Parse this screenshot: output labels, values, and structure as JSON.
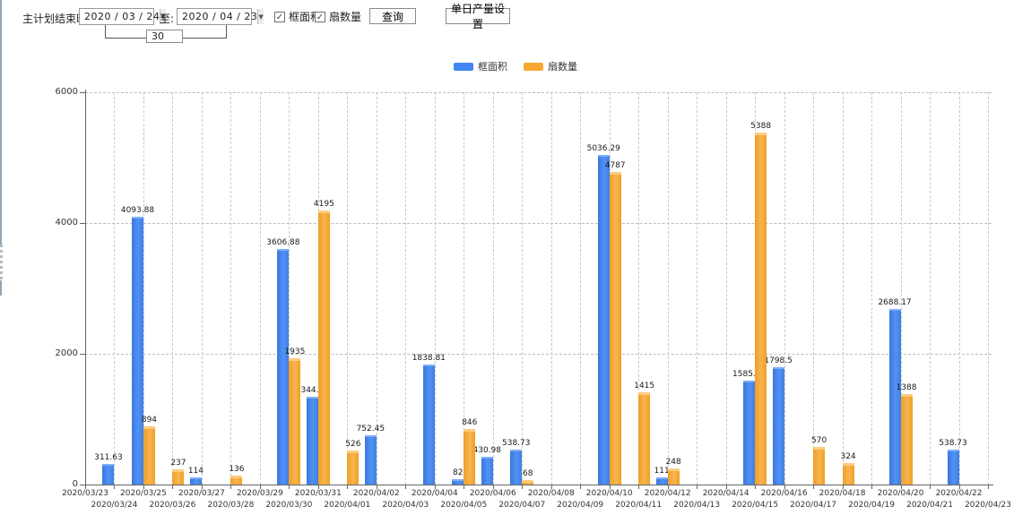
{
  "toolbar": {
    "title_label": "主计划结束时间:",
    "date_from": "2020 / 03 / 24",
    "to_label": "至:",
    "date_to": "2020 / 04 / 23",
    "days_between": "30",
    "checkbox_frame_area": "框面积",
    "checkbox_sash_qty": "扇数量",
    "query_button": "查询",
    "daily_output_button": "单日产量设置"
  },
  "colors": {
    "blue": "#4285f4",
    "orange": "#f6a832",
    "axis": "#666666",
    "grid": "#c9c9c9"
  },
  "legend": {
    "items": [
      {
        "label": "框面积",
        "color": "#4285f4"
      },
      {
        "label": "扇数量",
        "color": "#f6a832"
      }
    ]
  },
  "chart_data": {
    "type": "bar",
    "title": "",
    "xlabel": "",
    "ylabel": "",
    "ylim": [
      0,
      6000
    ],
    "yticks": [
      0,
      2000,
      4000,
      6000
    ],
    "grid": true,
    "legend_position": "top",
    "categories": [
      "2020/03/23",
      "2020/03/24",
      "2020/03/25",
      "2020/03/26",
      "2020/03/27",
      "2020/03/28",
      "2020/03/29",
      "2020/03/30",
      "2020/03/31",
      "2020/04/01",
      "2020/04/02",
      "2020/04/03",
      "2020/04/04",
      "2020/04/05",
      "2020/04/06",
      "2020/04/07",
      "2020/04/08",
      "2020/04/09",
      "2020/04/10",
      "2020/04/11",
      "2020/04/12",
      "2020/04/13",
      "2020/04/14",
      "2020/04/15",
      "2020/04/16",
      "2020/04/17",
      "2020/04/18",
      "2020/04/19",
      "2020/04/20",
      "2020/04/21",
      "2020/04/22",
      "2020/04/23"
    ],
    "series": [
      {
        "name": "框面积",
        "color": "#4285f4",
        "values": [
          null,
          311.63,
          4093.88,
          null,
          114,
          null,
          null,
          3606.88,
          1344.95,
          null,
          752.45,
          null,
          1838.81,
          82,
          430.98,
          538.73,
          null,
          null,
          5036.29,
          null,
          111,
          null,
          null,
          1585.96,
          1798.5,
          null,
          null,
          null,
          2688.17,
          null,
          538.73,
          null
        ]
      },
      {
        "name": "扇数量",
        "color": "#f6a832",
        "values": [
          null,
          null,
          894,
          237,
          null,
          136,
          null,
          1935,
          4195,
          526,
          null,
          null,
          null,
          846,
          null,
          68,
          null,
          null,
          4787,
          1415,
          248,
          null,
          null,
          5388,
          null,
          570,
          324,
          null,
          1388,
          null,
          null,
          null
        ]
      }
    ]
  }
}
